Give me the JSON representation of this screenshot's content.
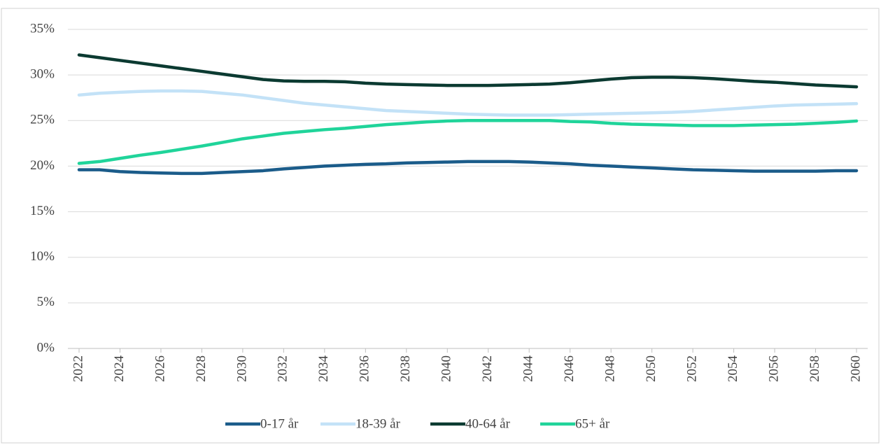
{
  "chart_data": {
    "type": "line",
    "x": [
      2022,
      2023,
      2024,
      2025,
      2026,
      2027,
      2028,
      2029,
      2030,
      2031,
      2032,
      2033,
      2034,
      2035,
      2036,
      2037,
      2038,
      2039,
      2040,
      2041,
      2042,
      2043,
      2044,
      2045,
      2046,
      2047,
      2048,
      2049,
      2050,
      2051,
      2052,
      2053,
      2054,
      2055,
      2056,
      2057,
      2058,
      2059,
      2060
    ],
    "xlim": [
      2022,
      2060
    ],
    "xticks": [
      2022,
      2024,
      2026,
      2028,
      2030,
      2032,
      2034,
      2036,
      2038,
      2040,
      2042,
      2044,
      2046,
      2048,
      2050,
      2052,
      2054,
      2056,
      2058,
      2060
    ],
    "ylim": [
      0,
      35
    ],
    "yticks": [
      {
        "value": 0,
        "label": "0%"
      },
      {
        "value": 5,
        "label": "5%"
      },
      {
        "value": 10,
        "label": "10%"
      },
      {
        "value": 15,
        "label": "15%"
      },
      {
        "value": 20,
        "label": "20%"
      },
      {
        "value": 25,
        "label": "25%"
      },
      {
        "value": 30,
        "label": "30%"
      },
      {
        "value": 35,
        "label": "35%"
      }
    ],
    "grid": true,
    "legend": "bottom",
    "series": [
      {
        "name": "0-17 år",
        "color": "#1b5c8a",
        "values": [
          19.6,
          19.6,
          19.4,
          19.3,
          19.25,
          19.2,
          19.2,
          19.3,
          19.4,
          19.5,
          19.7,
          19.85,
          20.0,
          20.1,
          20.2,
          20.25,
          20.35,
          20.4,
          20.45,
          20.5,
          20.5,
          20.5,
          20.45,
          20.35,
          20.25,
          20.1,
          20.0,
          19.9,
          19.8,
          19.7,
          19.6,
          19.55,
          19.5,
          19.45,
          19.45,
          19.45,
          19.45,
          19.5,
          19.5
        ]
      },
      {
        "name": "18-39 år",
        "color": "#c3e2f7",
        "values": [
          27.8,
          28.0,
          28.1,
          28.2,
          28.25,
          28.25,
          28.2,
          28.0,
          27.8,
          27.5,
          27.2,
          26.9,
          26.7,
          26.5,
          26.3,
          26.1,
          26.0,
          25.9,
          25.8,
          25.7,
          25.65,
          25.6,
          25.6,
          25.6,
          25.65,
          25.7,
          25.75,
          25.8,
          25.85,
          25.9,
          26.0,
          26.15,
          26.3,
          26.45,
          26.6,
          26.7,
          26.75,
          26.8,
          26.85
        ]
      },
      {
        "name": "40-64 år",
        "color": "#0b3a31",
        "values": [
          32.2,
          31.9,
          31.6,
          31.3,
          31.0,
          30.7,
          30.4,
          30.1,
          29.8,
          29.5,
          29.35,
          29.3,
          29.3,
          29.25,
          29.1,
          29.0,
          28.95,
          28.9,
          28.85,
          28.85,
          28.85,
          28.9,
          28.95,
          29.0,
          29.15,
          29.35,
          29.55,
          29.7,
          29.75,
          29.75,
          29.7,
          29.6,
          29.45,
          29.3,
          29.2,
          29.05,
          28.9,
          28.8,
          28.7
        ]
      },
      {
        "name": "65+ år",
        "color": "#20d49a",
        "values": [
          20.3,
          20.5,
          20.85,
          21.2,
          21.5,
          21.85,
          22.2,
          22.6,
          23.0,
          23.3,
          23.6,
          23.8,
          24.0,
          24.15,
          24.35,
          24.55,
          24.7,
          24.85,
          24.95,
          25.0,
          25.0,
          25.0,
          25.0,
          25.0,
          24.9,
          24.85,
          24.7,
          24.6,
          24.55,
          24.5,
          24.45,
          24.45,
          24.45,
          24.5,
          24.55,
          24.6,
          24.7,
          24.8,
          24.95
        ]
      }
    ]
  }
}
